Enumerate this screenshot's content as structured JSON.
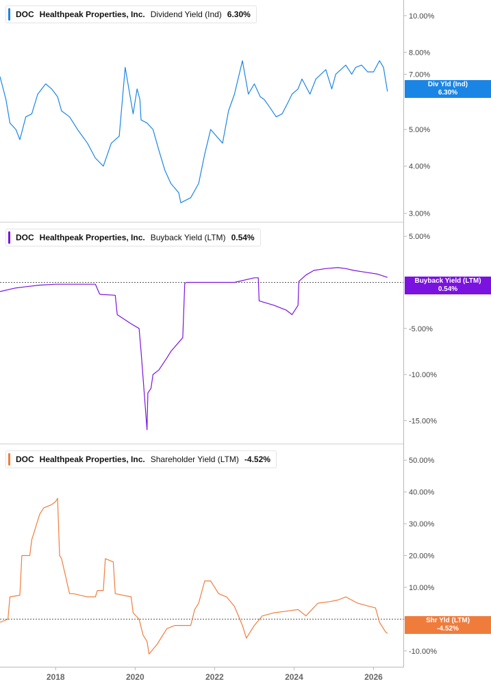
{
  "colors": {
    "div": "#1a85e5",
    "buyback": "#7a12e0",
    "shr": "#f07c3c",
    "axis": "#b8b8b8",
    "label": "#444444"
  },
  "chart_data": [
    {
      "type": "line",
      "legend": {
        "ticker": "DOC",
        "company": "Healthpeak Properties, Inc.",
        "metric": "Dividend Yield (Ind)",
        "value": "6.30%"
      },
      "flag": {
        "name": "Div Yld (Ind)",
        "value": "6.30%"
      },
      "scale": "log",
      "ylim": [
        2.85,
        11.0
      ],
      "yticks": [
        {
          "value": 10,
          "label": "10.00%"
        },
        {
          "value": 8,
          "label": "8.00%"
        },
        {
          "value": 7,
          "label": "7.00%"
        },
        {
          "value": 5,
          "label": "5.00%"
        },
        {
          "value": 4,
          "label": "4.00%"
        },
        {
          "value": 3,
          "label": "3.00%"
        }
      ],
      "series": [
        {
          "x": [
            2016.6,
            2016.75,
            2016.85,
            2017.0,
            2017.1,
            2017.25,
            2017.4,
            2017.55,
            2017.75,
            2017.9,
            2018.05,
            2018.15,
            2018.35,
            2018.55,
            2018.8,
            2019.0,
            2019.2,
            2019.4,
            2019.6,
            2019.75,
            2019.95,
            2020.05,
            2020.12,
            2020.15,
            2020.3,
            2020.45,
            2020.6,
            2020.75,
            2020.9,
            2021.1,
            2021.15,
            2021.4,
            2021.6,
            2021.75,
            2021.9,
            2022.2,
            2022.35,
            2022.5,
            2022.7,
            2022.85,
            2023.0,
            2023.15,
            2023.25,
            2023.4,
            2023.55,
            2023.7,
            2023.85,
            2023.95,
            2024.1,
            2024.2,
            2024.4,
            2024.55,
            2024.8,
            2024.95,
            2025.05,
            2025.3,
            2025.45,
            2025.55,
            2025.7,
            2025.85,
            2026.0,
            2026.15,
            2026.25,
            2026.35
          ],
          "y": [
            6.9,
            6.0,
            5.2,
            5.0,
            4.7,
            5.4,
            5.5,
            6.2,
            6.6,
            6.4,
            6.1,
            5.6,
            5.4,
            5.0,
            4.6,
            4.2,
            4.0,
            4.6,
            4.8,
            7.3,
            5.5,
            6.4,
            6.0,
            5.3,
            5.2,
            5.0,
            4.4,
            3.9,
            3.6,
            3.4,
            3.2,
            3.3,
            3.6,
            4.3,
            5.0,
            4.6,
            5.6,
            6.2,
            7.6,
            6.2,
            6.6,
            6.1,
            6.0,
            5.7,
            5.4,
            5.5,
            5.9,
            6.2,
            6.4,
            6.8,
            6.2,
            6.8,
            7.2,
            6.4,
            7.0,
            7.4,
            7.0,
            7.3,
            7.4,
            7.1,
            7.1,
            7.6,
            7.3,
            6.3
          ]
        }
      ]
    },
    {
      "type": "line",
      "legend": {
        "ticker": "DOC",
        "company": "Healthpeak Properties, Inc.",
        "metric": "Buyback Yield (LTM)",
        "value": "0.54%"
      },
      "flag": {
        "name": "Buyback Yield (LTM)",
        "value": "0.54%"
      },
      "ylim": [
        -17.5,
        6.5
      ],
      "baseline": 0,
      "yticks": [
        {
          "value": 5,
          "label": "5.00%"
        },
        {
          "value": -5,
          "label": "-5.00%"
        },
        {
          "value": -10,
          "label": "-10.00%"
        },
        {
          "value": -15,
          "label": "-15.00%"
        }
      ],
      "series": [
        {
          "x": [
            2016.6,
            2017.0,
            2017.2,
            2017.6,
            2018.0,
            2018.5,
            2019.0,
            2019.1,
            2019.12,
            2019.5,
            2019.55,
            2019.9,
            2020.1,
            2020.15,
            2020.3,
            2020.32,
            2020.4,
            2020.45,
            2020.6,
            2020.8,
            2020.9,
            2021.2,
            2021.25,
            2021.3,
            2021.5,
            2022.0,
            2022.5,
            2023.0,
            2023.1,
            2023.12,
            2023.5,
            2023.8,
            2023.95,
            2024.1,
            2024.12,
            2024.3,
            2024.5,
            2024.8,
            2025.1,
            2025.3,
            2025.5,
            2025.8,
            2026.1,
            2026.35
          ],
          "y": [
            -1.0,
            -0.6,
            -0.5,
            -0.3,
            -0.2,
            -0.2,
            -0.2,
            -1.2,
            -1.3,
            -1.4,
            -3.5,
            -4.5,
            -5.0,
            -7.5,
            -16.0,
            -12.0,
            -11.5,
            -10.0,
            -9.5,
            -8.2,
            -7.5,
            -6.0,
            -0.1,
            0.0,
            0.0,
            0.0,
            0.0,
            0.5,
            0.5,
            -2.0,
            -2.5,
            -3.0,
            -3.5,
            -2.5,
            0.1,
            0.8,
            1.3,
            1.5,
            1.6,
            1.5,
            1.3,
            1.1,
            0.9,
            0.54
          ]
        }
      ]
    },
    {
      "type": "line",
      "legend": {
        "ticker": "DOC",
        "company": "Healthpeak Properties, Inc.",
        "metric": "Shareholder Yield (LTM)",
        "value": "-4.52%"
      },
      "flag": {
        "name": "Shr Yld (LTM)",
        "value": "-4.52%"
      },
      "ylim": [
        -15.0,
        55.0
      ],
      "baseline": 0,
      "yticks": [
        {
          "value": 50,
          "label": "50.00%"
        },
        {
          "value": 40,
          "label": "40.00%"
        },
        {
          "value": 30,
          "label": "30.00%"
        },
        {
          "value": 20,
          "label": "20.00%"
        },
        {
          "value": 10,
          "label": "10.00%"
        },
        {
          "value": 0,
          "label": "0.00%"
        },
        {
          "value": -10,
          "label": "-10.00%"
        }
      ],
      "series": [
        {
          "x": [
            2016.6,
            2016.8,
            2016.85,
            2017.1,
            2017.15,
            2017.35,
            2017.4,
            2017.6,
            2017.7,
            2017.9,
            2018.0,
            2018.05,
            2018.1,
            2018.15,
            2018.35,
            2018.45,
            2018.8,
            2019.0,
            2019.05,
            2019.2,
            2019.25,
            2019.45,
            2019.5,
            2019.9,
            2019.95,
            2020.1,
            2020.2,
            2020.3,
            2020.35,
            2020.55,
            2020.8,
            2021.0,
            2021.4,
            2021.5,
            2021.6,
            2021.75,
            2021.9,
            2022.1,
            2022.3,
            2022.5,
            2022.7,
            2022.8,
            2023.0,
            2023.2,
            2023.5,
            2023.8,
            2024.1,
            2024.3,
            2024.6,
            2024.9,
            2025.1,
            2025.3,
            2025.6,
            2025.9,
            2026.05,
            2026.15,
            2026.3,
            2026.35
          ],
          "y": [
            -1.0,
            0.0,
            7.0,
            7.5,
            20.0,
            20.0,
            25.0,
            33.0,
            35.0,
            36.0,
            37.0,
            38.0,
            20.0,
            19.0,
            8.0,
            8.0,
            7.0,
            7.0,
            9.0,
            9.0,
            19.0,
            18.0,
            8.0,
            7.0,
            2.0,
            0.0,
            -5.0,
            -7.0,
            -11.0,
            -8.0,
            -3.0,
            -2.0,
            -2.0,
            3.0,
            5.0,
            12.0,
            12.0,
            8.0,
            7.0,
            4.0,
            -2.0,
            -6.0,
            -2.0,
            1.0,
            2.0,
            2.5,
            3.0,
            1.0,
            5.0,
            5.5,
            6.0,
            7.0,
            5.0,
            4.0,
            3.5,
            -1.0,
            -4.0,
            -4.52
          ]
        }
      ]
    }
  ],
  "x_axis": {
    "range": [
      2016.6,
      2026.75
    ],
    "ticks": [
      {
        "value": 2018,
        "label": "2018"
      },
      {
        "value": 2020,
        "label": "2020"
      },
      {
        "value": 2022,
        "label": "2022"
      },
      {
        "value": 2024,
        "label": "2024"
      },
      {
        "value": 2026,
        "label": "2026"
      }
    ]
  }
}
